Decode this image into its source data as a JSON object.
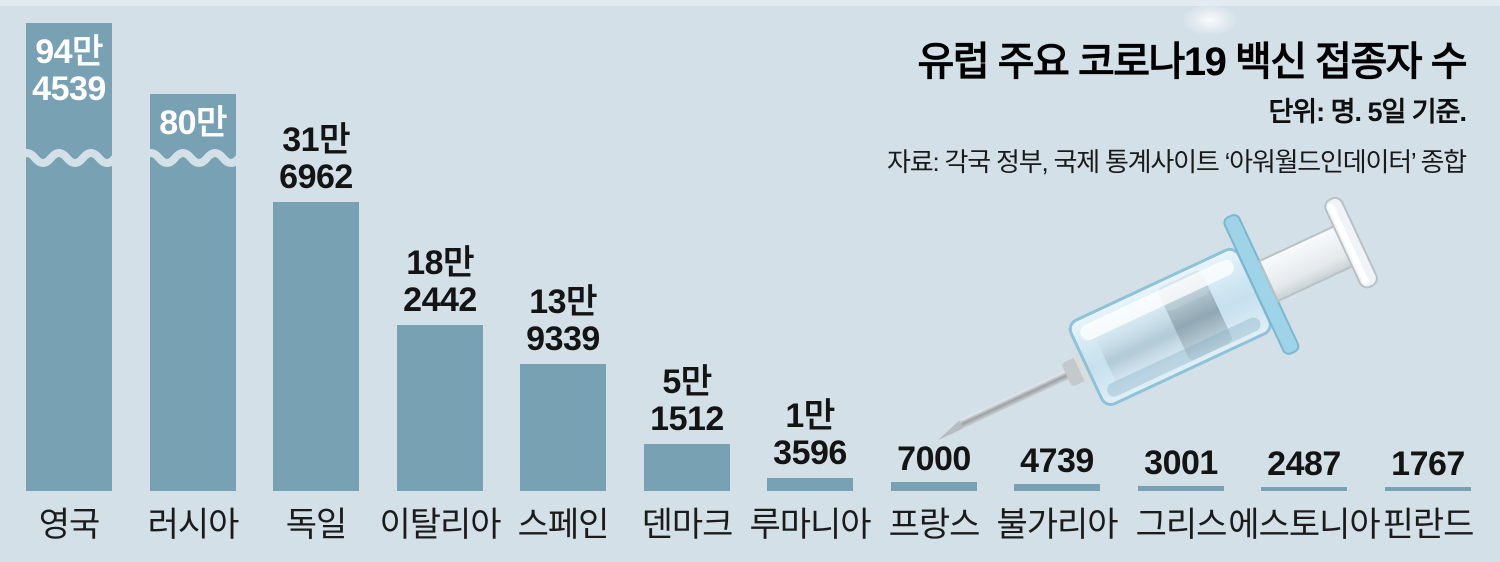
{
  "header": {
    "title": "유럽 주요 코로나19 백신 접종자 수",
    "unit_note": "단위: 명. 5일 기준.",
    "source": "자료: 각국 정부, 국제 통계사이트 ‘아워월드인데이터’ 종합"
  },
  "colors": {
    "background": "#d4e0e8",
    "bar": "#78a1b3",
    "text_dark": "#141414",
    "text_light": "#ffffff"
  },
  "illustration": {
    "icon": "syringe-icon"
  },
  "chart_data": {
    "type": "bar",
    "title": "유럽 주요 코로나19 백신 접종자 수",
    "unit": "명",
    "as_of": "5일 기준",
    "categories": [
      "영국",
      "러시아",
      "독일",
      "이탈리아",
      "스페인",
      "덴마크",
      "루마니아",
      "프랑스",
      "불가리아",
      "그리스",
      "에스토니아",
      "핀란드"
    ],
    "values": [
      944539,
      800000,
      316962,
      182442,
      139339,
      51512,
      13596,
      7000,
      4739,
      3001,
      2487,
      1767
    ],
    "value_labels": [
      [
        "94만",
        "4539"
      ],
      [
        "80만"
      ],
      [
        "31만",
        "6962"
      ],
      [
        "18만",
        "2442"
      ],
      [
        "13만",
        "9339"
      ],
      [
        "5만",
        "1512"
      ],
      [
        "1만",
        "3596"
      ],
      [
        "7000"
      ],
      [
        "4739"
      ],
      [
        "3001"
      ],
      [
        "2487"
      ],
      [
        "1767"
      ]
    ],
    "value_label_inside_bar": [
      "영국",
      "러시아"
    ],
    "axis_break_bars": [
      "영국",
      "러시아"
    ],
    "grid": false,
    "legend_position": "none",
    "orientation": "vertical",
    "sorted": "descending"
  }
}
